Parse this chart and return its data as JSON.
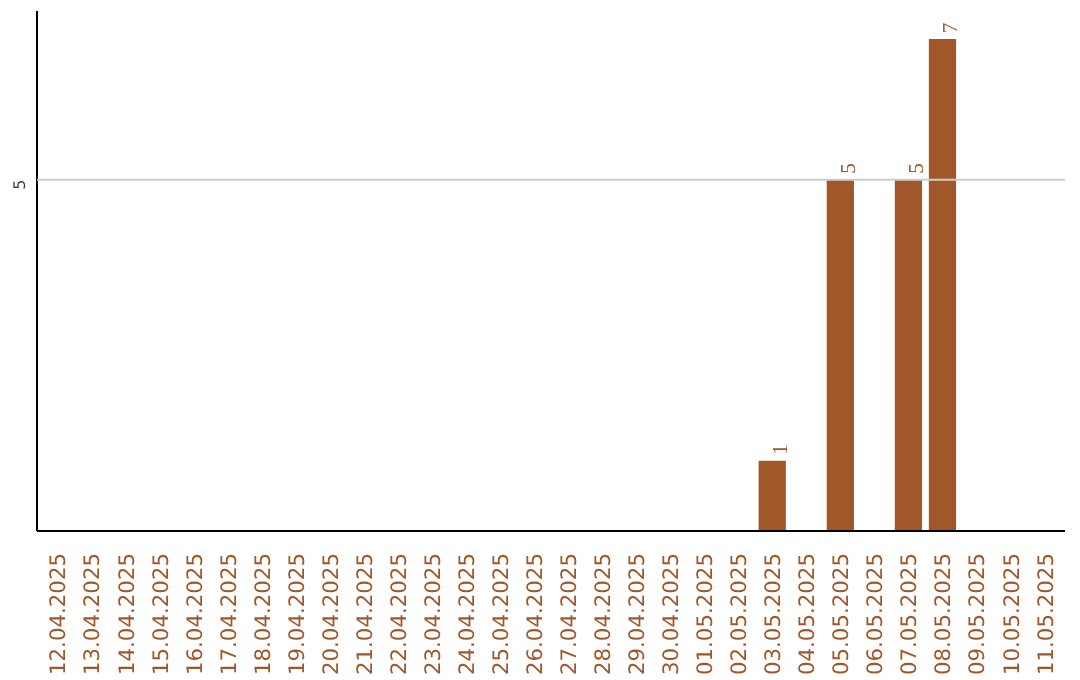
{
  "chart_data": {
    "type": "bar",
    "categories": [
      "12.04.2025",
      "13.04.2025",
      "14.04.2025",
      "15.04.2025",
      "16.04.2025",
      "17.04.2025",
      "18.04.2025",
      "19.04.2025",
      "20.04.2025",
      "21.04.2025",
      "22.04.2025",
      "23.04.2025",
      "24.04.2025",
      "25.04.2025",
      "26.04.2025",
      "27.04.2025",
      "28.04.2025",
      "29.04.2025",
      "30.04.2025",
      "01.05.2025",
      "02.05.2025",
      "03.05.2025",
      "04.05.2025",
      "05.05.2025",
      "06.05.2025",
      "07.05.2025",
      "08.05.2025",
      "09.05.2025",
      "10.05.2025",
      "11.05.2025"
    ],
    "values": [
      null,
      null,
      null,
      null,
      null,
      null,
      null,
      null,
      null,
      null,
      null,
      null,
      null,
      null,
      null,
      null,
      null,
      null,
      null,
      null,
      null,
      1,
      null,
      5,
      null,
      5,
      7,
      null,
      null,
      null
    ],
    "data_labels": true,
    "color": "#a0582a",
    "ylim": [
      0,
      7.4
    ],
    "ref_lines": [
      {
        "axis": "y",
        "value": 5,
        "label": "5",
        "color": "#cccccc"
      }
    ]
  }
}
